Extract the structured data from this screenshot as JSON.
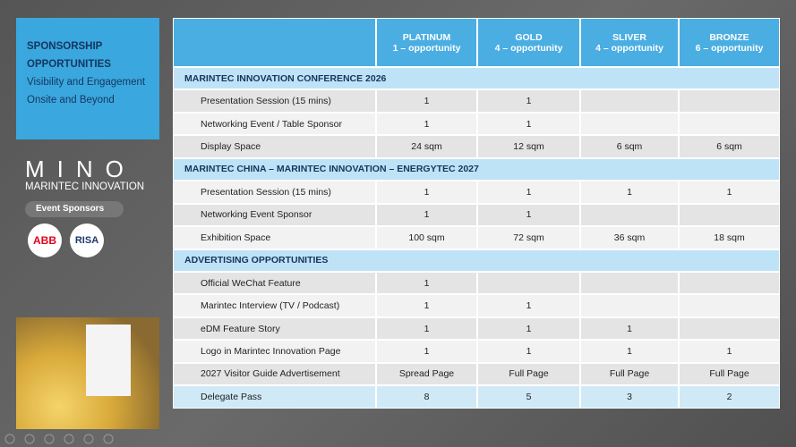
{
  "sidebar": {
    "title": "SPONSORSHIP OPPORTUNITIES",
    "subtitle": "Visibility and Engagement Onsite and Beyond"
  },
  "logo": {
    "name": "MINO",
    "tagline": "MARINTEC INNOVATION"
  },
  "sponsors": {
    "label": "Event Sponsors",
    "logos": [
      "ABB",
      "RISA"
    ]
  },
  "table": {
    "columns": [
      {
        "name": "PLATINUM",
        "note": "1 – opportunity"
      },
      {
        "name": "GOLD",
        "note": "4 – opportunity"
      },
      {
        "name": "SLIVER",
        "note": "4 – opportunity"
      },
      {
        "name": "BRONZE",
        "note": "6 – opportunity"
      }
    ],
    "sections": [
      {
        "title": "MARINTEC INNOVATION CONFERENCE 2026",
        "rows": [
          [
            "Presentation Session (15 mins)",
            1,
            1,
            null,
            null
          ],
          [
            "Networking Event / Table Sponsor",
            1,
            1,
            null,
            null
          ],
          [
            "Display Space",
            "24 sqm",
            "12 sqm",
            "6 sqm",
            "6 sqm"
          ]
        ]
      },
      {
        "title": "MARINTEC CHINA – MARINTEC INNOVATION – ENERGYTEC 2027",
        "rows": [
          [
            "Presentation Session (15 mins)",
            1,
            1,
            1,
            1
          ],
          [
            "Networking Event Sponsor",
            1,
            1,
            null,
            null
          ],
          [
            "Exhibition Space",
            "100 sqm",
            "72 sqm",
            "36 sqm",
            "18 sqm"
          ]
        ]
      },
      {
        "title": "ADVERTISING OPPORTUNITIES",
        "rows": [
          [
            "Official WeChat Feature",
            1,
            null,
            null,
            null
          ],
          [
            "Marintec Interview (TV / Podcast)",
            1,
            1,
            null,
            null
          ],
          [
            "eDM Feature Story",
            1,
            1,
            1,
            null
          ],
          [
            "Logo in Marintec Innovation Page",
            1,
            1,
            1,
            1
          ],
          [
            "2027 Visitor Guide Advertisement",
            "Spread Page",
            "Full Page",
            "Full Page",
            "Full Page"
          ],
          [
            "Delegate Pass",
            8,
            5,
            3,
            2
          ]
        ]
      }
    ]
  }
}
